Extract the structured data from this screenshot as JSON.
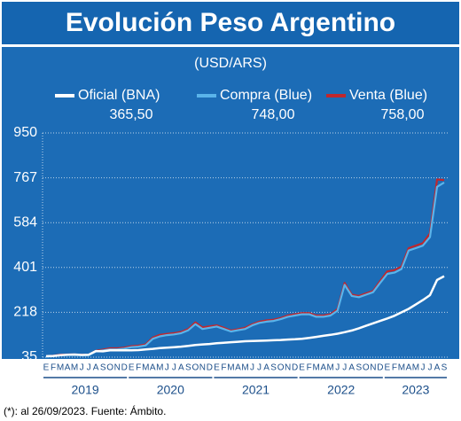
{
  "chart_data": {
    "type": "line",
    "title": "Evolución Peso Argentino",
    "subtitle": "(USD/ARS)",
    "note": "(*): al 26/09/2023. Fuente: Ámbito.",
    "categories": [
      "E",
      "F",
      "M",
      "A",
      "M",
      "J",
      "J",
      "A",
      "S",
      "O",
      "N",
      "D",
      "E",
      "F",
      "M",
      "A",
      "M",
      "J",
      "J",
      "A",
      "S",
      "O",
      "N",
      "D",
      "E",
      "F",
      "M",
      "A",
      "M",
      "J",
      "J",
      "A",
      "S",
      "O",
      "N",
      "D",
      "E",
      "F",
      "M",
      "A",
      "M",
      "J",
      "J",
      "A",
      "S",
      "O",
      "N",
      "D",
      "E",
      "F",
      "M",
      "A",
      "M",
      "J",
      "J",
      "A",
      "S"
    ],
    "years": [
      "2019",
      "2020",
      "2021",
      "2022",
      "2023"
    ],
    "series": [
      {
        "name": "Oficial (BNA)",
        "color": "#ffffff",
        "last_value": {
          "value": 365.5,
          "label": "365,50"
        },
        "values": [
          39,
          40,
          43,
          45,
          46,
          44,
          45,
          60,
          59,
          63,
          63,
          63,
          63,
          64,
          67,
          69,
          72,
          74,
          76,
          78,
          81,
          85,
          87,
          89,
          92,
          94,
          96,
          98,
          100,
          101,
          102,
          103,
          104,
          105,
          107,
          108,
          110,
          114,
          118,
          122,
          126,
          131,
          137,
          144,
          153,
          163,
          173,
          183,
          193,
          204,
          218,
          232,
          250,
          268,
          288,
          350,
          365.5
        ]
      },
      {
        "name": "Compra (Blue)",
        "color": "#5ab4ea",
        "last_value": {
          "value": 748,
          "label": "748,00"
        },
        "values": [
          37,
          39,
          43,
          44,
          44,
          43,
          43,
          58,
          63,
          67,
          67,
          70,
          76,
          78,
          83,
          110,
          120,
          125,
          128,
          133,
          145,
          170,
          150,
          155,
          160,
          150,
          140,
          145,
          150,
          165,
          175,
          180,
          183,
          190,
          200,
          205,
          210,
          210,
          200,
          200,
          205,
          225,
          330,
          285,
          280,
          290,
          300,
          338,
          375,
          380,
          395,
          470,
          480,
          490,
          525,
          730,
          748
        ]
      },
      {
        "name": "Venta (Blue)",
        "color": "#c0272d",
        "last_value": {
          "value": 758,
          "label": "758,00"
        },
        "values": [
          39,
          41,
          45,
          46,
          46,
          45,
          45,
          61,
          66,
          71,
          71,
          74,
          80,
          82,
          87,
          115,
          126,
          130,
          133,
          138,
          150,
          177,
          156,
          161,
          165,
          155,
          144,
          149,
          155,
          169,
          180,
          185,
          188,
          195,
          205,
          210,
          215,
          215,
          205,
          205,
          210,
          231,
          338,
          290,
          285,
          295,
          305,
          346,
          385,
          390,
          405,
          480,
          490,
          500,
          540,
          760,
          758
        ]
      }
    ],
    "ylim": [
      35,
      950
    ],
    "yticks": [
      35,
      218,
      401,
      584,
      767,
      950
    ],
    "grid": true
  }
}
